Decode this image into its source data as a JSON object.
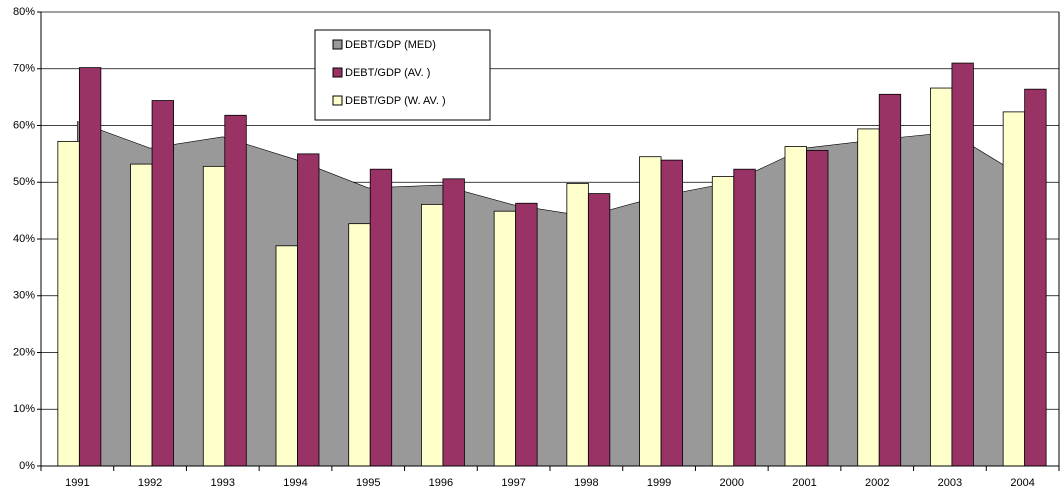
{
  "chart_data": {
    "type": "bar_area",
    "categories": [
      "1991",
      "1992",
      "1993",
      "1994",
      "1995",
      "1996",
      "1997",
      "1998",
      "1999",
      "2000",
      "2001",
      "2002",
      "2003",
      "2004"
    ],
    "series": [
      {
        "name": "DEBT/GDP (MED)",
        "color": "#999999",
        "kind": "area",
        "values": [
          60.7,
          56,
          58,
          54,
          49,
          49.5,
          46,
          44,
          47.5,
          50,
          56,
          57.5,
          58.8,
          51
        ]
      },
      {
        "name": "DEBT/GDP (AV. )",
        "color": "#993366",
        "kind": "bar",
        "values": [
          70.2,
          64.4,
          61.8,
          55,
          52.3,
          50.6,
          46.3,
          48,
          53.9,
          52.3,
          55.6,
          65.5,
          71,
          66.4
        ]
      },
      {
        "name": "DEBT/GDP (W. AV. )",
        "color": "#FFFFCC",
        "kind": "bar",
        "values": [
          57.2,
          53.2,
          52.8,
          38.8,
          42.7,
          46.1,
          44.9,
          49.8,
          54.5,
          51,
          56.3,
          59.4,
          66.6,
          62.4
        ]
      }
    ],
    "ylim": [
      0,
      80
    ],
    "yticks": [
      {
        "value": 0,
        "label": "0%"
      },
      {
        "value": 10,
        "label": "10%"
      },
      {
        "value": 20,
        "label": "20%"
      },
      {
        "value": 30,
        "label": "30%"
      },
      {
        "value": 40,
        "label": "40%"
      },
      {
        "value": 50,
        "label": "50%"
      },
      {
        "value": 60,
        "label": "60%"
      },
      {
        "value": 70,
        "label": "70%"
      },
      {
        "value": 80,
        "label": "80%"
      }
    ],
    "grid": true,
    "legend": "top-left"
  }
}
